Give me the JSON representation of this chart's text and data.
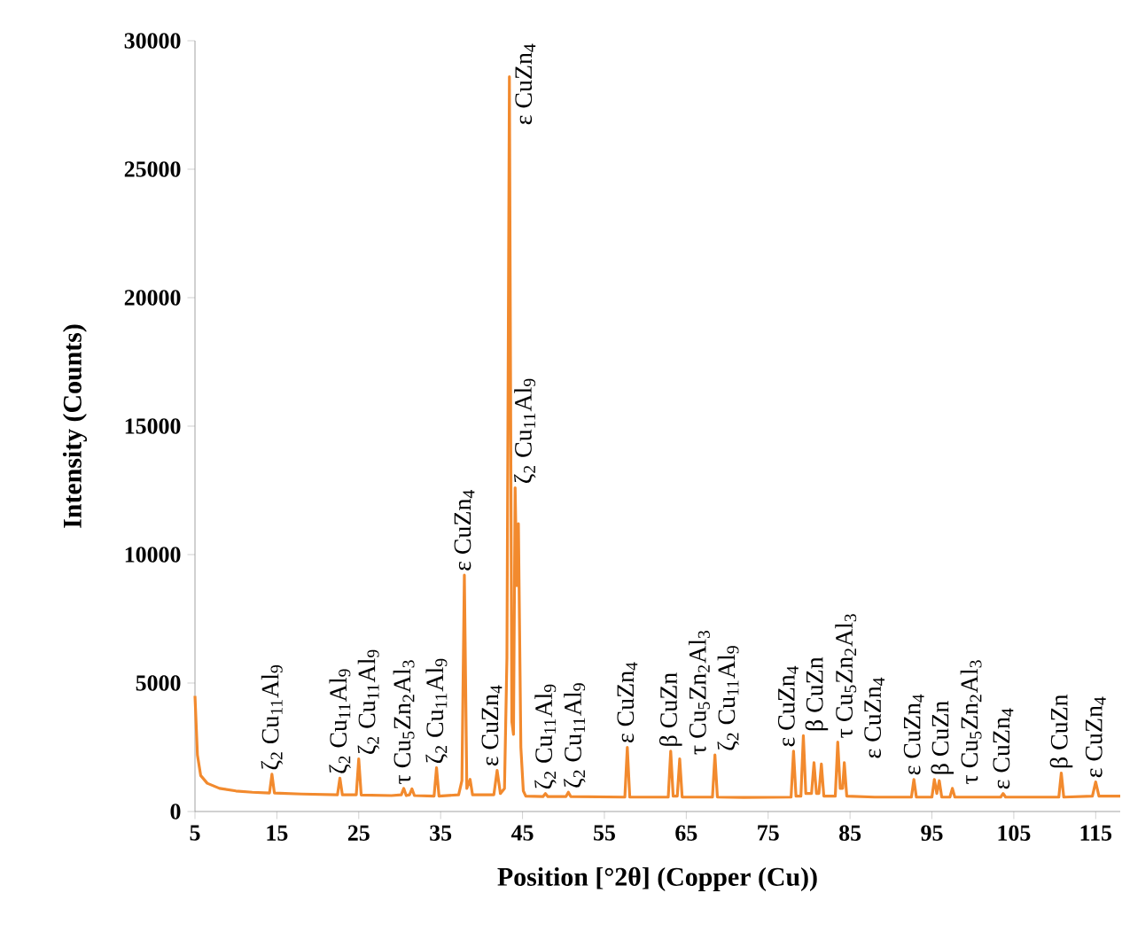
{
  "chart_data": {
    "type": "line",
    "xlabel": "Position [°2θ] (Copper (Cu))",
    "ylabel": "Intensity (Counts)",
    "xlim": [
      5,
      118
    ],
    "ylim": [
      0,
      30000
    ],
    "xticks": [
      5,
      15,
      25,
      35,
      45,
      55,
      65,
      75,
      85,
      95,
      105,
      115
    ],
    "yticks": [
      0,
      5000,
      10000,
      15000,
      20000,
      25000,
      30000
    ],
    "color": "#f28a2e",
    "x": [
      5,
      5.3,
      5.7,
      6.5,
      8,
      10,
      12,
      14.1,
      14.4,
      14.7,
      18,
      22.4,
      22.7,
      23,
      24.7,
      25,
      25.3,
      29,
      30.2,
      30.5,
      30.8,
      31.2,
      31.5,
      31.8,
      34.2,
      34.5,
      34.8,
      37.2,
      37.6,
      37.9,
      38.2,
      38.6,
      38.9,
      41.5,
      41.9,
      42.3,
      42.8,
      43.1,
      43.4,
      43.7,
      43.9,
      44.1,
      44.3,
      44.5,
      44.8,
      45.1,
      45.4,
      47.5,
      47.8,
      48.1,
      50.3,
      50.6,
      50.9,
      57.5,
      57.8,
      58.1,
      62.8,
      63.1,
      63.4,
      63.9,
      64.2,
      64.5,
      68.2,
      68.5,
      68.8,
      72,
      77.8,
      78.1,
      78.4,
      79.0,
      79.3,
      79.6,
      80.3,
      80.6,
      80.9,
      81.2,
      81.5,
      81.8,
      83.2,
      83.5,
      83.8,
      84.1,
      84.3,
      84.6,
      88,
      92.5,
      92.8,
      93.1,
      95,
      95.3,
      95.6,
      95.9,
      96.2,
      97.2,
      97.5,
      97.8,
      103.4,
      103.7,
      104,
      110.5,
      110.8,
      111.1,
      114.6,
      115,
      115.4,
      118
    ],
    "values": [
      4500,
      2200,
      1400,
      1100,
      900,
      800,
      750,
      720,
      1450,
      720,
      680,
      650,
      1300,
      650,
      650,
      2050,
      640,
      620,
      650,
      900,
      620,
      650,
      880,
      620,
      600,
      1700,
      600,
      650,
      1200,
      9200,
      900,
      1250,
      650,
      650,
      1600,
      700,
      900,
      6000,
      28600,
      3500,
      3000,
      12600,
      8800,
      11200,
      2500,
      800,
      600,
      580,
      700,
      580,
      580,
      750,
      580,
      560,
      2500,
      560,
      560,
      2350,
      600,
      600,
      2050,
      560,
      560,
      2200,
      560,
      550,
      560,
      2350,
      600,
      600,
      2950,
      700,
      700,
      1900,
      700,
      700,
      1850,
      600,
      600,
      2700,
      900,
      900,
      1900,
      600,
      560,
      560,
      1250,
      560,
      560,
      1250,
      700,
      1200,
      560,
      560,
      900,
      560,
      560,
      700,
      560,
      560,
      1500,
      560,
      600,
      1150,
      600,
      600
    ],
    "annotations": [
      {
        "text": "ζ$_{2}$ Cu$_{11}$Al$_{9}$",
        "x": 14.4,
        "y": 1450
      },
      {
        "text": "ζ$_{2}$ Cu$_{11}$Al$_{9}$",
        "x": 22.7,
        "y": 1300
      },
      {
        "text": "ζ$_{2}$ Cu$_{11}$Al$_{9}$",
        "x": 25,
        "y": 2050
      },
      {
        "text": "τ Cu$_{5}$Zn$_{2}$Al$_{3}$",
        "x": 30.5,
        "y": 900
      },
      {
        "text": "ζ$_{2}$ Cu$_{11}$Al$_{9}$",
        "x": 34.5,
        "y": 1700
      },
      {
        "text": "ε CuZn$_{4}$",
        "x": 37.9,
        "y": 9200
      },
      {
        "text": "ε CuZn$_{4}$",
        "x": 41.9,
        "y": 1600
      },
      {
        "text": "ε CuZn$_{4}$",
        "x": 43.4,
        "y": 28600
      },
      {
        "text": "ζ$_{2}$ Cu$_{11}$Al$_{9}$",
        "x": 44.1,
        "y": 12600
      },
      {
        "text": "ζ$_{2}$ Cu$_{11}$Al$_{9}$",
        "x": 47.8,
        "y": 700
      },
      {
        "text": "ζ$_{2}$ Cu$_{11}$Al$_{9}$",
        "x": 50.6,
        "y": 750
      },
      {
        "text": "ε CuZn$_{4}$",
        "x": 57.8,
        "y": 2500
      },
      {
        "text": "β CuZn",
        "x": 63.1,
        "y": 2350
      },
      {
        "text": "τ Cu$_{5}$Zn$_{2}$Al$_{3}$",
        "x": 64.2,
        "y": 2050
      },
      {
        "text": "ζ$_{2}$ Cu$_{11}$Al$_{9}$",
        "x": 68.5,
        "y": 2200
      },
      {
        "text": "ε CuZn$_{4}$",
        "x": 78.1,
        "y": 2350
      },
      {
        "text": "β CuZn",
        "x": 79.3,
        "y": 2950
      },
      {
        "text": "τ Cu$_{5}$Zn$_{2}$Al$_{3}$",
        "x": 83.5,
        "y": 2700
      },
      {
        "text": "ε CuZn$_{4}$",
        "x": 84.3,
        "y": 1900
      },
      {
        "text": "ε CuZn$_{4}$",
        "x": 92.8,
        "y": 1250
      },
      {
        "text": "β CuZn",
        "x": 95.3,
        "y": 1250
      },
      {
        "text": "τ Cu$_{5}$Zn$_{2}$Al$_{3}$",
        "x": 97.5,
        "y": 900
      },
      {
        "text": "ε CuZn$_{4}$",
        "x": 103.7,
        "y": 700
      },
      {
        "text": "β CuZn",
        "x": 110.8,
        "y": 1500
      },
      {
        "text": "ε CuZn$_{4}$",
        "x": 115,
        "y": 1150
      }
    ]
  }
}
